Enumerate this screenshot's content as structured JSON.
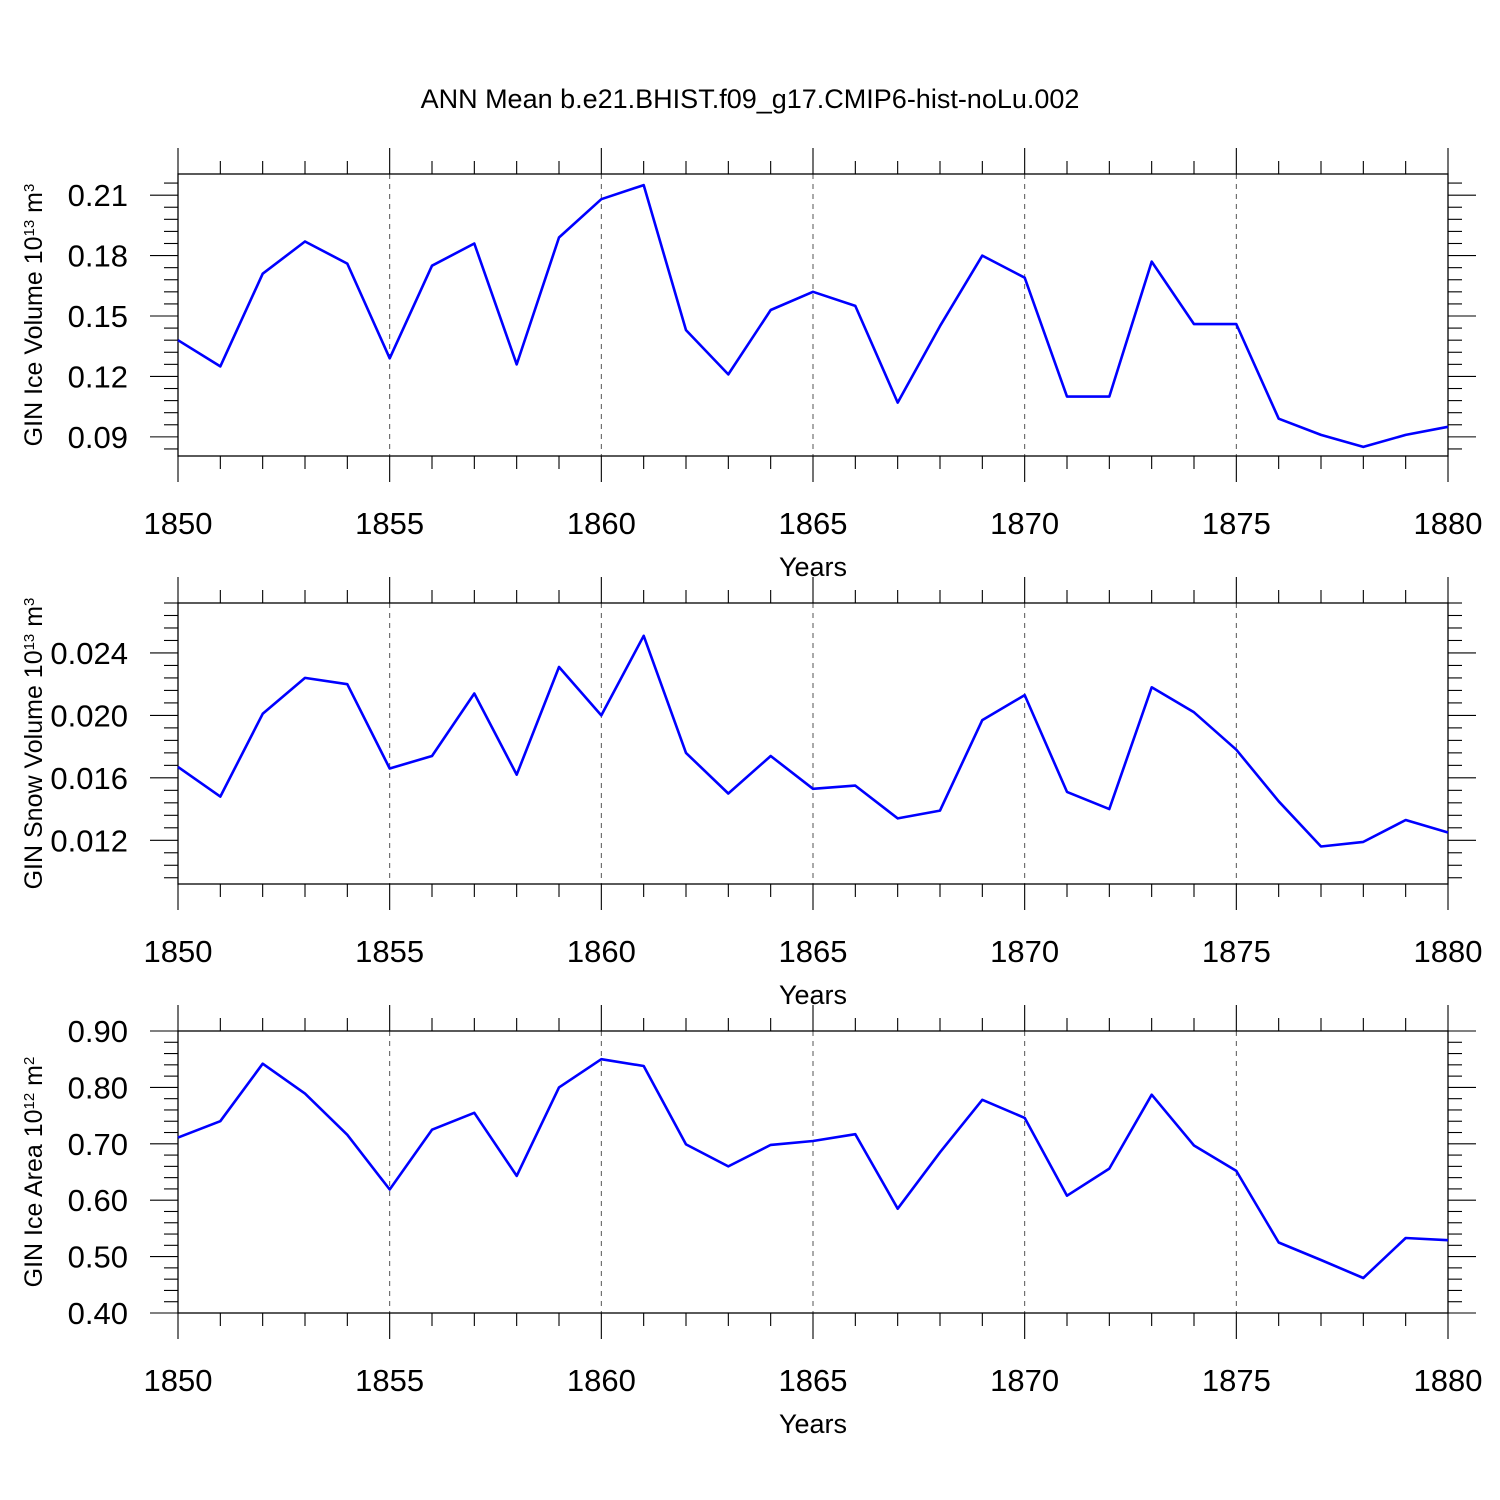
{
  "title": "ANN Mean b.e21.BHIST.f09_g17.CMIP6-hist-noLu.002",
  "colors": {
    "line": "#0000ff",
    "axis": "#000000",
    "grid": "#555555"
  },
  "chart_data": [
    {
      "type": "line",
      "xlabel": "Years",
      "ylabel": {
        "main": "GIN Ice Volume 10",
        "exp": "13",
        "unit": " m",
        "unit_exp": "3"
      },
      "xlim": [
        1850,
        1880
      ],
      "ylim": [
        0.0805,
        0.2205
      ],
      "xticks": [
        "1850",
        "1855",
        "1860",
        "1865",
        "1870",
        "1875",
        "1880"
      ],
      "yticks": [
        "0.09",
        "0.12",
        "0.15",
        "0.18",
        "0.21"
      ],
      "grid": "vertical dashed at major x ticks",
      "x": [
        1850,
        1851,
        1852,
        1853,
        1854,
        1855,
        1856,
        1857,
        1858,
        1859,
        1860,
        1861,
        1862,
        1863,
        1864,
        1865,
        1866,
        1867,
        1868,
        1869,
        1870,
        1871,
        1872,
        1873,
        1874,
        1875,
        1876,
        1877,
        1878,
        1879,
        1880
      ],
      "series": [
        {
          "values": [
            0.138,
            0.125,
            0.171,
            0.187,
            0.176,
            0.129,
            0.175,
            0.186,
            0.126,
            0.189,
            0.208,
            0.215,
            0.143,
            0.121,
            0.153,
            0.162,
            0.155,
            0.107,
            0.145,
            0.18,
            0.169,
            0.11,
            0.11,
            0.177,
            0.146,
            0.146,
            0.099,
            0.091,
            0.085,
            0.091,
            0.095
          ]
        }
      ]
    },
    {
      "type": "line",
      "xlabel": "Years",
      "ylabel": {
        "main": "GIN Snow Volume 10",
        "exp": "13",
        "unit": " m",
        "unit_exp": "3"
      },
      "xlim": [
        1850,
        1880
      ],
      "ylim": [
        0.0092,
        0.0272
      ],
      "xticks": [
        "1850",
        "1855",
        "1860",
        "1865",
        "1870",
        "1875",
        "1880"
      ],
      "yticks": [
        "0.012",
        "0.016",
        "0.020",
        "0.024"
      ],
      "grid": "vertical dashed at major x ticks",
      "x": [
        1850,
        1851,
        1852,
        1853,
        1854,
        1855,
        1856,
        1857,
        1858,
        1859,
        1860,
        1861,
        1862,
        1863,
        1864,
        1865,
        1866,
        1867,
        1868,
        1869,
        1870,
        1871,
        1872,
        1873,
        1874,
        1875,
        1876,
        1877,
        1878,
        1879,
        1880
      ],
      "series": [
        {
          "values": [
            0.0167,
            0.0148,
            0.0201,
            0.0224,
            0.022,
            0.0166,
            0.0174,
            0.0214,
            0.0162,
            0.0231,
            0.02,
            0.0251,
            0.0176,
            0.015,
            0.0174,
            0.0153,
            0.0155,
            0.0134,
            0.0139,
            0.0197,
            0.0213,
            0.0151,
            0.014,
            0.0218,
            0.0202,
            0.0178,
            0.0145,
            0.0116,
            0.0119,
            0.0133,
            0.0125
          ]
        }
      ]
    },
    {
      "type": "line",
      "xlabel": "Years",
      "ylabel": {
        "main": "GIN Ice Area 10",
        "exp": "12",
        "unit": " m",
        "unit_exp": "2"
      },
      "xlim": [
        1850,
        1880
      ],
      "ylim": [
        0.4,
        0.9
      ],
      "xticks": [
        "1850",
        "1855",
        "1860",
        "1865",
        "1870",
        "1875",
        "1880"
      ],
      "yticks": [
        "0.40",
        "0.50",
        "0.60",
        "0.70",
        "0.80",
        "0.90"
      ],
      "grid": "vertical dashed at major x ticks",
      "x": [
        1850,
        1851,
        1852,
        1853,
        1854,
        1855,
        1856,
        1857,
        1858,
        1859,
        1860,
        1861,
        1862,
        1863,
        1864,
        1865,
        1866,
        1867,
        1868,
        1869,
        1870,
        1871,
        1872,
        1873,
        1874,
        1875,
        1876,
        1877,
        1878,
        1879,
        1880
      ],
      "series": [
        {
          "values": [
            0.711,
            0.74,
            0.842,
            0.789,
            0.716,
            0.619,
            0.725,
            0.755,
            0.643,
            0.8,
            0.85,
            0.838,
            0.699,
            0.66,
            0.698,
            0.705,
            0.717,
            0.585,
            0.685,
            0.778,
            0.746,
            0.608,
            0.656,
            0.787,
            0.697,
            0.652,
            0.525,
            0.494,
            0.462,
            0.533,
            0.529
          ]
        }
      ]
    }
  ]
}
